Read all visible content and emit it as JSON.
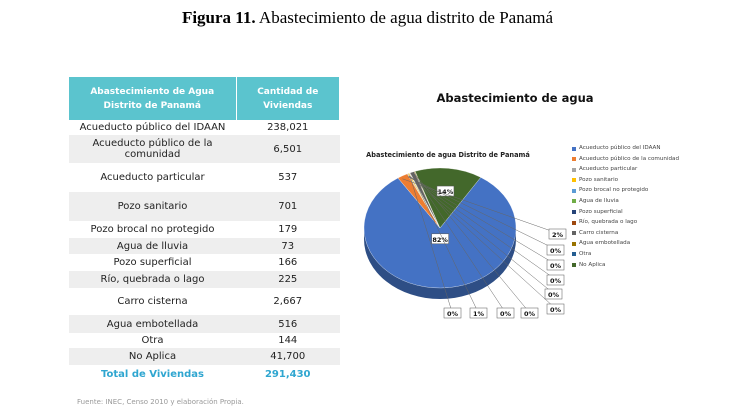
{
  "caption": {
    "prefix": "Figura 11.",
    "text": " Abastecimiento de agua distrito de Panamá"
  },
  "table": {
    "headers": [
      "Abastecimiento de Agua Distrito de Panamá",
      "Cantidad de Viviendas"
    ],
    "rows": [
      {
        "label": "Acueducto público del IDAAN",
        "value": "238,021"
      },
      {
        "label": "Acueducto público de la comunidad",
        "value": "6,501"
      },
      {
        "label": "Acueducto particular",
        "value": "537"
      },
      {
        "label": "Pozo sanitario",
        "value": "701"
      },
      {
        "label": "Pozo brocal no protegido",
        "value": "179"
      },
      {
        "label": "Agua de lluvia",
        "value": "73"
      },
      {
        "label": "Pozo superficial",
        "value": "166"
      },
      {
        "label": "Río, quebrada o lago",
        "value": "225"
      },
      {
        "label": "Carro cisterna",
        "value": "2,667"
      },
      {
        "label": "Agua embotellada",
        "value": "516"
      },
      {
        "label": "Otra",
        "value": "144"
      },
      {
        "label": "No Aplica",
        "value": "41,700"
      }
    ],
    "total": {
      "label": "Total de Viviendas",
      "value": "291,430"
    }
  },
  "source": "Fuente: INEC, Censo 2010 y elaboración Propia.",
  "chart_heading": "Abastecimiento de agua",
  "chart_data": {
    "type": "pie",
    "title": "Abastecimiento de agua Distrito de Panamá",
    "legend_position": "right",
    "slices": [
      {
        "name": "Acueducto público del IDAAN",
        "value": 238021,
        "label": "82%",
        "color": "#4472c4"
      },
      {
        "name": "Acueducto público de la comunidad",
        "value": 6501,
        "label": "2%",
        "color": "#ed7d31"
      },
      {
        "name": "Acueducto particular",
        "value": 537,
        "label": "0%",
        "color": "#a5a5a5"
      },
      {
        "name": "Pozo sanitario",
        "value": 701,
        "label": "0%",
        "color": "#ffc000"
      },
      {
        "name": "Pozo brocal no protegido",
        "value": 179,
        "label": "0%",
        "color": "#5b9bd5"
      },
      {
        "name": "Agua de lluvia",
        "value": 73,
        "label": "0%",
        "color": "#70ad47"
      },
      {
        "name": "Pozo superficial",
        "value": 166,
        "label": "0%",
        "color": "#264478"
      },
      {
        "name": "Río, quebrada o lago",
        "value": 225,
        "label": "0%",
        "color": "#9e480e"
      },
      {
        "name": "Carro cisterna",
        "value": 2667,
        "label": "1%",
        "color": "#636363"
      },
      {
        "name": "Agua embotellada",
        "value": 516,
        "label": "0%",
        "color": "#997300"
      },
      {
        "name": "Otra",
        "value": 144,
        "label": "0%",
        "color": "#255e91"
      },
      {
        "name": "No Aplica",
        "value": 41700,
        "label": "14%",
        "color": "#43682b"
      }
    ]
  }
}
